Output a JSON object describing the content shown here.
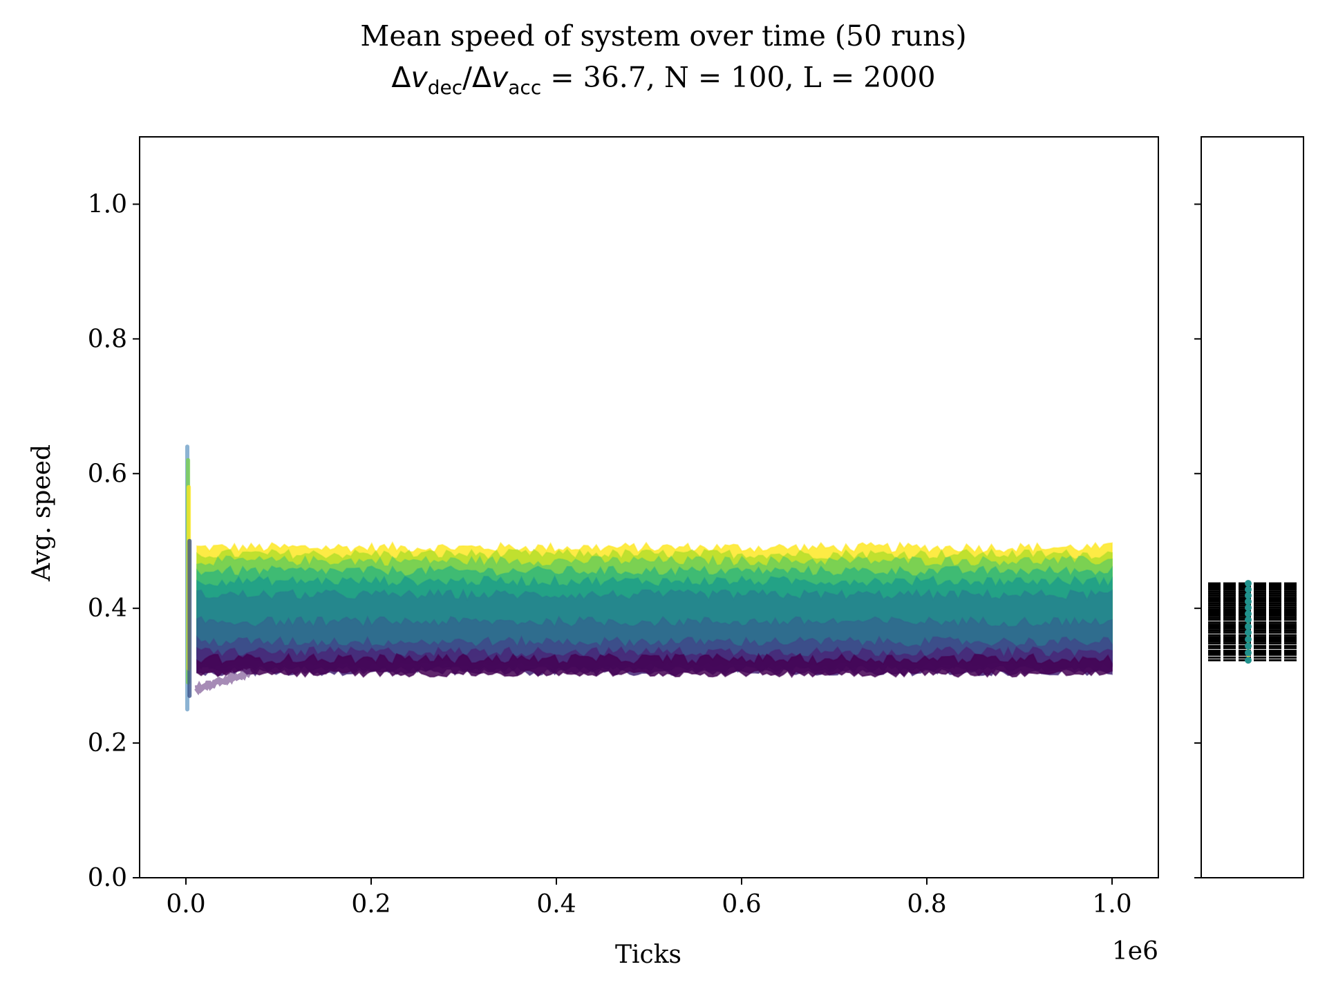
{
  "title_line1": "Mean speed of system over time (50 runs)",
  "title_line2": {
    "delta1": "Δ",
    "v1": "v",
    "sub1": "dec",
    "slash": "/",
    "delta2": "Δ",
    "v2": "v",
    "sub2": "acc",
    "rest": " = 36.7, N = 100, L = 2000"
  },
  "chart_data": [
    {
      "type": "line",
      "runs": 50,
      "colormap": "viridis",
      "colormap_stops": [
        "#440154",
        "#3b528b",
        "#21918c",
        "#5ec962",
        "#fde725"
      ],
      "xlabel": "Ticks",
      "ylabel": "Avg. speed",
      "x_offset_text": "1e6",
      "xlim": [
        -0.05,
        1.05
      ],
      "ylim": [
        0.0,
        1.1
      ],
      "xticks": [
        0.0,
        0.2,
        0.4,
        0.6,
        0.8,
        1.0
      ],
      "xtick_labels": [
        "0.0",
        "0.2",
        "0.4",
        "0.6",
        "0.8",
        "1.0"
      ],
      "yticks": [
        0.0,
        0.2,
        0.4,
        0.6,
        0.8,
        1.0
      ],
      "ytick_labels": [
        "0.0",
        "0.2",
        "0.4",
        "0.6",
        "0.8",
        "1.0"
      ],
      "x_range_data": [
        0.0,
        1.0
      ],
      "series_bands": [
        {
          "color": "#fde725",
          "low": 0.355,
          "high": 0.49
        },
        {
          "color": "#b5de2b",
          "low": 0.345,
          "high": 0.48
        },
        {
          "color": "#6ece58",
          "low": 0.34,
          "high": 0.47
        },
        {
          "color": "#35b779",
          "low": 0.335,
          "high": 0.455
        },
        {
          "color": "#1f9e89",
          "low": 0.33,
          "high": 0.44
        },
        {
          "color": "#26828e",
          "low": 0.325,
          "high": 0.42
        },
        {
          "color": "#31688e",
          "low": 0.315,
          "high": 0.38
        },
        {
          "color": "#3e4989",
          "low": 0.31,
          "high": 0.35
        },
        {
          "color": "#482878",
          "low": 0.305,
          "high": 0.335
        },
        {
          "color": "#440154",
          "low": 0.303,
          "high": 0.325
        }
      ],
      "initial_transient": {
        "x": [
          0.0,
          0.003,
          0.01,
          0.03,
          0.06
        ],
        "peak": 0.64,
        "trough": 0.25,
        "settle_low": 0.28
      }
    },
    {
      "type": "scatter",
      "shares_y_axis": true,
      "ylim": [
        0.0,
        1.1
      ],
      "final_speeds": [
        0.323,
        0.327,
        0.331,
        0.334,
        0.337,
        0.341,
        0.344,
        0.348,
        0.351,
        0.354,
        0.357,
        0.36,
        0.364,
        0.367,
        0.37,
        0.373,
        0.376,
        0.379,
        0.383,
        0.386,
        0.389,
        0.392,
        0.395,
        0.398,
        0.401,
        0.404,
        0.407,
        0.41,
        0.413,
        0.416,
        0.419,
        0.422,
        0.425,
        0.428,
        0.431,
        0.434,
        0.437
      ],
      "marker_color": "#21918c",
      "line_color": "#000000"
    }
  ]
}
